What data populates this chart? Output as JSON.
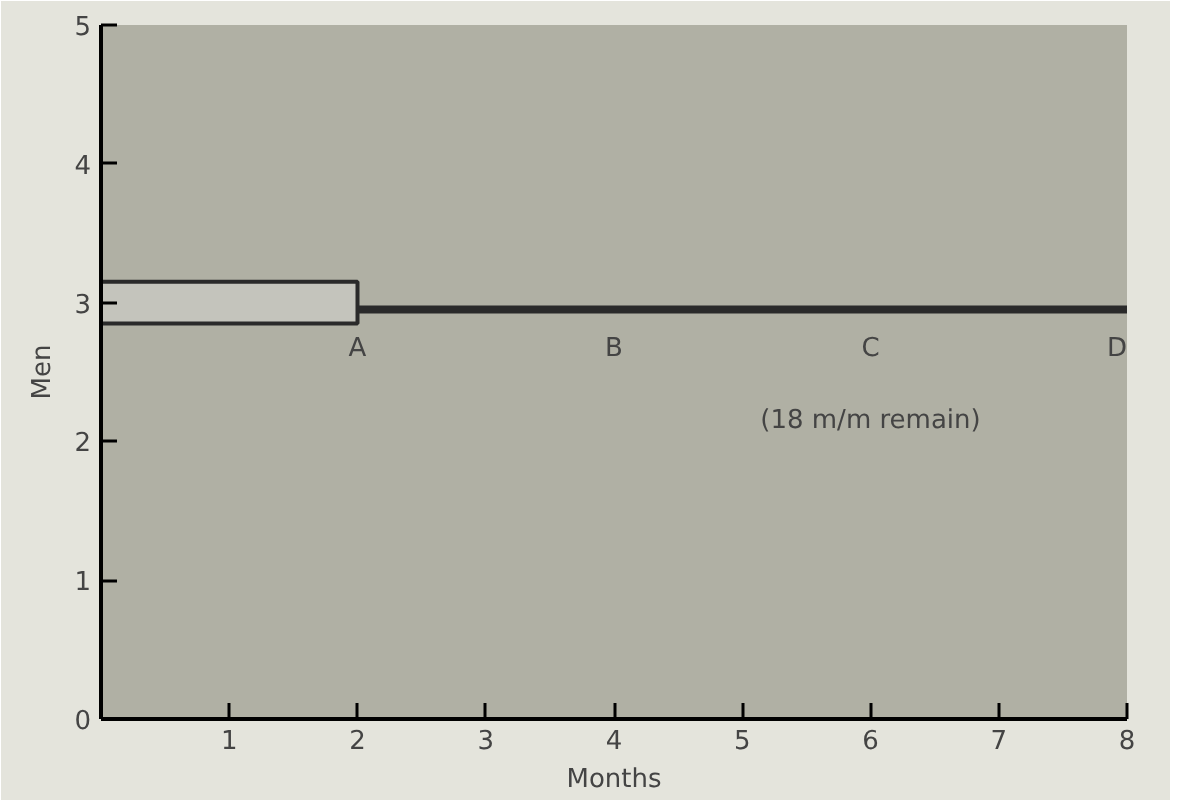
{
  "chart_data": {
    "type": "line",
    "xlabel": "Months",
    "ylabel": "Men",
    "xlim": [
      0,
      8
    ],
    "ylim": [
      0,
      5
    ],
    "xticks": [
      1,
      2,
      3,
      4,
      5,
      6,
      7,
      8
    ],
    "yticks": [
      0,
      1,
      2,
      3,
      4,
      5
    ],
    "grid": false,
    "series": [
      {
        "type": "bar",
        "x": [
          1
        ],
        "base": [
          2.85
        ],
        "values": [
          0.3
        ],
        "color": "#c4c4bc"
      },
      {
        "x": [
          2,
          4,
          6,
          8
        ],
        "values": [
          2.95,
          2.95,
          2.95,
          2.95
        ],
        "color": "#2a2a2a"
      }
    ],
    "annotations": [
      {
        "text": "A",
        "x": 2,
        "y": 2.95
      },
      {
        "text": "B",
        "x": 4,
        "y": 2.95
      },
      {
        "text": "C",
        "x": 6,
        "y": 2.95
      },
      {
        "text": "D",
        "x": 8,
        "y": 2.95
      },
      "(18 m/m remain)"
    ]
  }
}
